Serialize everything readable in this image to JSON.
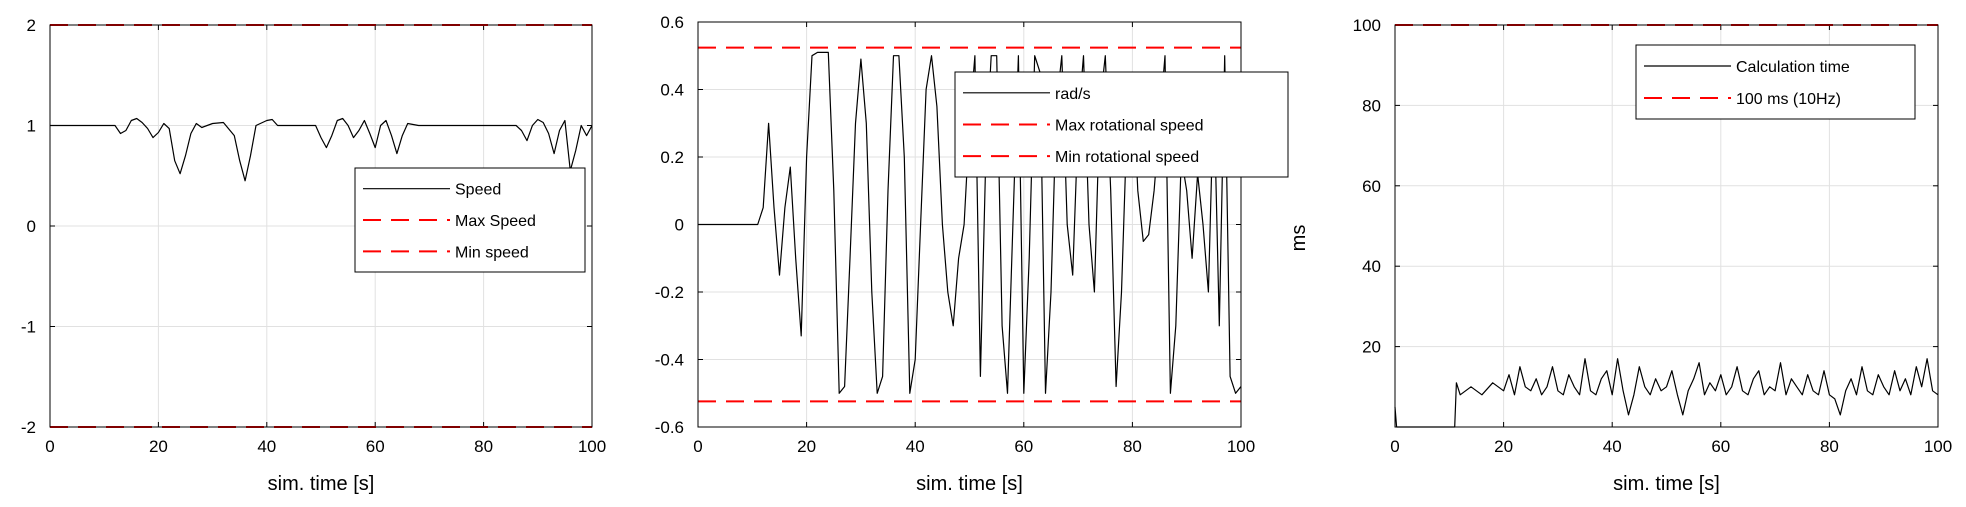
{
  "chart_data": [
    {
      "type": "line",
      "xlabel": "sim. time [s]",
      "ylabel": "",
      "xlim": [
        0,
        100
      ],
      "ylim": [
        -2,
        2
      ],
      "xticks": [
        0,
        20,
        40,
        60,
        80,
        100
      ],
      "yticks": [
        -2,
        -1,
        0,
        1,
        2
      ],
      "grid": true,
      "legend_position": "right-middle",
      "series": [
        {
          "name": "Speed",
          "color": "#000000",
          "style": "solid",
          "x": [
            0,
            12,
            13,
            14,
            15,
            16,
            17,
            18,
            19,
            20,
            21,
            22,
            23,
            24,
            25,
            26,
            27,
            28,
            30,
            32,
            34,
            35,
            36,
            37,
            38,
            40,
            41,
            42,
            45,
            48,
            49,
            50,
            51,
            52,
            53,
            54,
            55,
            56,
            57,
            58,
            59,
            60,
            61,
            62,
            63,
            64,
            65,
            66,
            68,
            70,
            72,
            74,
            76,
            78,
            80,
            82,
            84,
            86,
            87,
            88,
            89,
            90,
            91,
            92,
            93,
            94,
            95,
            96,
            97,
            98,
            99,
            100
          ],
          "y": [
            1.0,
            1.0,
            0.92,
            0.95,
            1.05,
            1.07,
            1.03,
            0.97,
            0.88,
            0.93,
            1.02,
            0.97,
            0.65,
            0.52,
            0.7,
            0.92,
            1.02,
            0.98,
            1.02,
            1.03,
            0.9,
            0.65,
            0.45,
            0.7,
            1.0,
            1.05,
            1.06,
            1.0,
            1.0,
            1.0,
            1.0,
            0.88,
            0.78,
            0.9,
            1.05,
            1.07,
            1.0,
            0.88,
            0.95,
            1.05,
            0.92,
            0.78,
            1.0,
            1.05,
            0.9,
            0.72,
            0.9,
            1.02,
            1.0,
            1.0,
            1.0,
            1.0,
            1.0,
            1.0,
            1.0,
            1.0,
            1.0,
            1.0,
            0.95,
            0.85,
            1.0,
            1.06,
            1.03,
            0.92,
            0.72,
            0.95,
            1.05,
            0.55,
            0.75,
            1.0,
            0.9,
            1.0
          ]
        },
        {
          "name": "Max Speed",
          "color": "#ff0000",
          "style": "dashed",
          "x": [
            0,
            100
          ],
          "y": [
            2,
            2
          ]
        },
        {
          "name": "Min speed",
          "color": "#ff0000",
          "style": "dashed",
          "x": [
            0,
            100
          ],
          "y": [
            -2,
            -2
          ]
        }
      ]
    },
    {
      "type": "line",
      "xlabel": "sim. time [s]",
      "ylabel": "",
      "xlim": [
        0,
        100
      ],
      "ylim": [
        -0.6,
        0.6
      ],
      "xticks": [
        0,
        20,
        40,
        60,
        80,
        100
      ],
      "yticks": [
        -0.6,
        -0.4,
        -0.2,
        0,
        0.2,
        0.4,
        0.6
      ],
      "ytick_labels": [
        "-0.6",
        "-0.4",
        "-0.2",
        "0",
        "0.2",
        "0.4",
        "0.6"
      ],
      "grid": true,
      "legend_position": "top-right",
      "series": [
        {
          "name": "rad/s",
          "color": "#000000",
          "style": "solid",
          "x": [
            0,
            11,
            12,
            13,
            14,
            15,
            16,
            17,
            18,
            19,
            20,
            21,
            22,
            23,
            24,
            25,
            26,
            27,
            28,
            29,
            30,
            31,
            32,
            33,
            34,
            35,
            36,
            37,
            38,
            39,
            40,
            41,
            42,
            43,
            44,
            45,
            46,
            47,
            48,
            49,
            50,
            51,
            52,
            53,
            54,
            55,
            56,
            57,
            58,
            59,
            60,
            61,
            62,
            63,
            64,
            65,
            66,
            67,
            68,
            69,
            70,
            71,
            72,
            73,
            74,
            75,
            76,
            77,
            78,
            79,
            80,
            81,
            82,
            83,
            84,
            85,
            86,
            87,
            88,
            89,
            90,
            91,
            92,
            93,
            94,
            95,
            96,
            97,
            98,
            99,
            100
          ],
          "y": [
            0,
            0,
            0.05,
            0.3,
            0.05,
            -0.15,
            0.05,
            0.17,
            -0.1,
            -0.33,
            0.2,
            0.5,
            0.51,
            0.51,
            0.51,
            0.1,
            -0.5,
            -0.48,
            -0.1,
            0.3,
            0.49,
            0.3,
            -0.2,
            -0.5,
            -0.45,
            0.1,
            0.5,
            0.5,
            0.2,
            -0.5,
            -0.4,
            0.0,
            0.4,
            0.5,
            0.35,
            0.0,
            -0.2,
            -0.3,
            -0.1,
            0.0,
            0.3,
            0.5,
            -0.45,
            0.2,
            0.5,
            0.5,
            -0.3,
            -0.5,
            0.0,
            0.5,
            -0.5,
            -0.1,
            0.5,
            0.45,
            -0.5,
            -0.2,
            0.35,
            0.5,
            0.0,
            -0.15,
            0.3,
            0.5,
            0.0,
            -0.2,
            0.35,
            0.5,
            0.1,
            -0.48,
            -0.2,
            0.3,
            0.45,
            0.1,
            -0.05,
            -0.03,
            0.1,
            0.3,
            0.5,
            -0.5,
            -0.3,
            0.2,
            0.1,
            -0.1,
            0.15,
            0.0,
            -0.2,
            0.4,
            -0.3,
            0.5,
            -0.45,
            -0.5,
            -0.48
          ]
        },
        {
          "name": "Max rotational speed",
          "color": "#ff0000",
          "style": "dashed",
          "x": [
            0,
            100
          ],
          "y": [
            0.524,
            0.524
          ]
        },
        {
          "name": "Min rotational speed",
          "color": "#ff0000",
          "style": "dashed",
          "x": [
            0,
            100
          ],
          "y": [
            -0.524,
            -0.524
          ]
        }
      ]
    },
    {
      "type": "line",
      "xlabel": "sim. time [s]",
      "ylabel": "ms",
      "xlim": [
        0,
        100
      ],
      "ylim": [
        0,
        100
      ],
      "xticks": [
        0,
        20,
        40,
        60,
        80,
        100
      ],
      "yticks": [
        20,
        40,
        60,
        80,
        100
      ],
      "grid": true,
      "legend_position": "top-right",
      "series": [
        {
          "name": "Calculation time",
          "color": "#000000",
          "style": "solid",
          "x": [
            0,
            0.3,
            0.6,
            11,
            11.3,
            12,
            14,
            16,
            18,
            20,
            21,
            22,
            23,
            24,
            25,
            26,
            27,
            28,
            29,
            30,
            31,
            32,
            33,
            34,
            35,
            36,
            37,
            38,
            39,
            40,
            41,
            42,
            43,
            44,
            45,
            46,
            47,
            48,
            49,
            50,
            51,
            52,
            53,
            54,
            55,
            56,
            57,
            58,
            59,
            60,
            61,
            62,
            63,
            64,
            65,
            66,
            67,
            68,
            69,
            70,
            71,
            72,
            73,
            74,
            75,
            76,
            77,
            78,
            79,
            80,
            81,
            82,
            83,
            84,
            85,
            86,
            87,
            88,
            89,
            90,
            91,
            92,
            93,
            94,
            95,
            96,
            97,
            98,
            99,
            100
          ],
          "y": [
            5,
            0,
            0,
            0,
            11,
            8,
            10,
            8,
            11,
            9,
            13,
            8,
            15,
            10,
            9,
            12,
            8,
            10,
            15,
            9,
            8,
            13,
            10,
            8,
            17,
            9,
            8,
            12,
            14,
            8,
            17,
            9,
            3,
            8,
            15,
            10,
            8,
            12,
            9,
            10,
            14,
            8,
            3,
            9,
            12,
            16,
            8,
            11,
            9,
            13,
            8,
            10,
            15,
            9,
            8,
            12,
            14,
            8,
            10,
            9,
            16,
            8,
            12,
            10,
            8,
            13,
            9,
            8,
            14,
            8,
            7,
            3,
            9,
            12,
            8,
            15,
            9,
            8,
            13,
            10,
            8,
            14,
            9,
            12,
            8,
            15,
            10,
            17,
            9,
            8
          ]
        },
        {
          "name": "100 ms (10Hz)",
          "color": "#ff0000",
          "style": "dashed",
          "x": [
            0,
            100
          ],
          "y": [
            100,
            100
          ]
        }
      ]
    }
  ]
}
